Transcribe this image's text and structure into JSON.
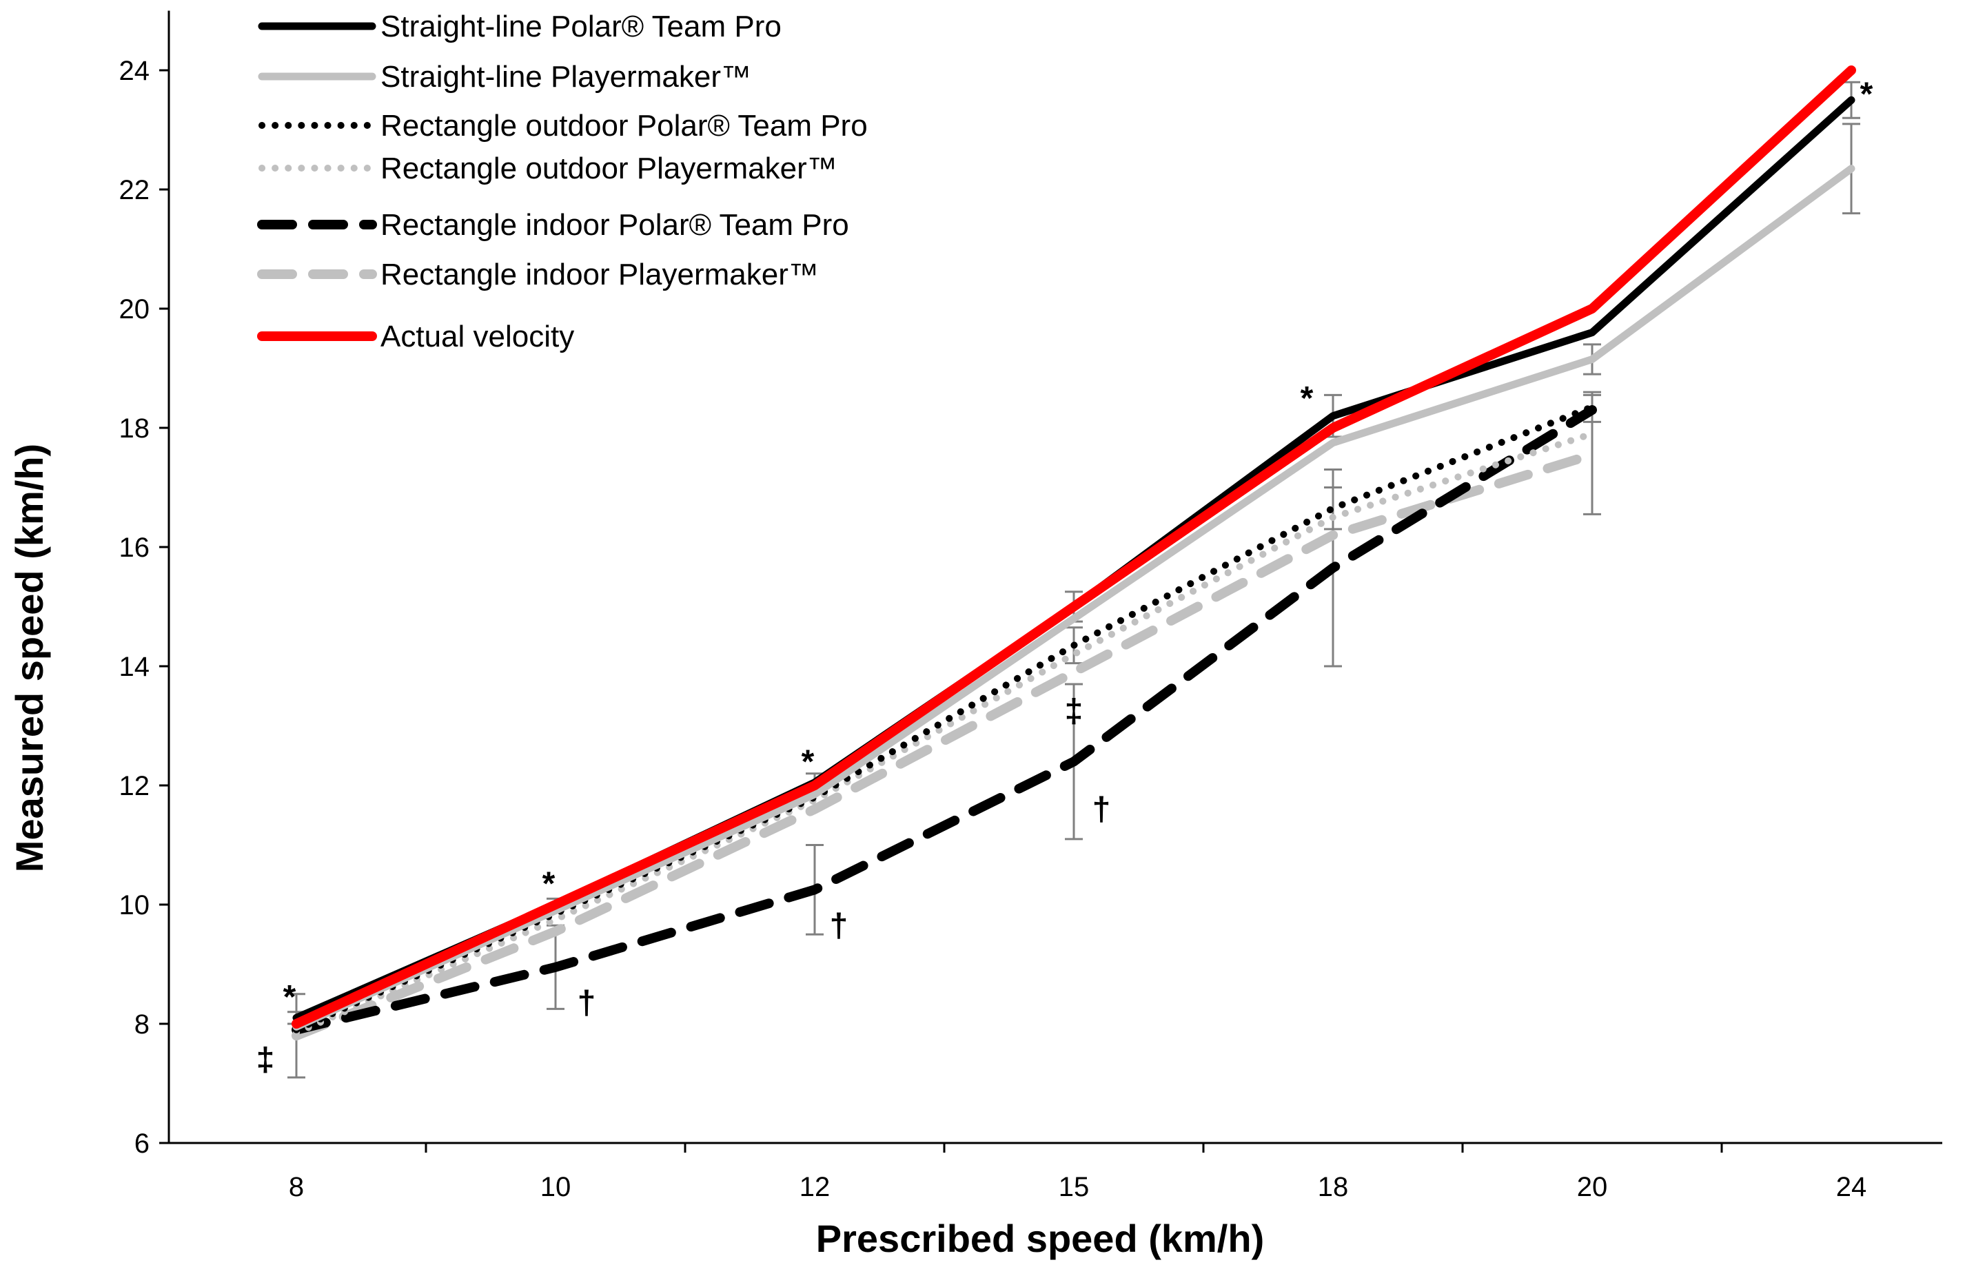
{
  "chart_data": {
    "type": "line",
    "title": "",
    "xlabel": "Prescribed speed (km/h)",
    "ylabel": "Measured speed (km/h)",
    "categories": [
      "8",
      "10",
      "12",
      "15",
      "18",
      "20",
      "24"
    ],
    "ylim": [
      6,
      25
    ],
    "yticks": [
      6,
      8,
      10,
      12,
      14,
      16,
      18,
      20,
      22,
      24
    ],
    "ytick_labels": [
      "6",
      "8",
      "10",
      "12",
      "14",
      "16",
      "18",
      "20",
      "22",
      "24"
    ],
    "grid": false,
    "legend_position": "top-left",
    "series": [
      {
        "name": "Straight-line Polar® Team Pro",
        "color": "#000000",
        "style": "solid",
        "values": [
          8.1,
          10.0,
          12.05,
          15.0,
          18.2,
          19.6,
          23.5
        ],
        "errors": [
          0.1,
          0.1,
          0.15,
          0.25,
          0.35,
          null,
          0.3
        ]
      },
      {
        "name": "Straight-line Playermaker™",
        "color": "#c0c0c0",
        "style": "solid",
        "values": [
          7.95,
          9.9,
          11.85,
          14.8,
          17.75,
          19.15,
          22.35
        ],
        "errors": [
          null,
          null,
          null,
          null,
          null,
          0.25,
          0.75
        ]
      },
      {
        "name": "Rectangle outdoor Polar® Team Pro",
        "color": "#000000",
        "style": "dotted",
        "values": [
          7.9,
          9.85,
          11.8,
          14.35,
          16.65,
          18.35,
          null
        ],
        "errors": [
          null,
          null,
          null,
          0.3,
          0.35,
          0.25,
          null
        ]
      },
      {
        "name": "Rectangle outdoor Playermaker™",
        "color": "#c0c0c0",
        "style": "dotted",
        "values": [
          7.85,
          9.75,
          11.75,
          14.2,
          16.5,
          17.9,
          null
        ],
        "errors": [
          null,
          null,
          null,
          null,
          null,
          null,
          null
        ]
      },
      {
        "name": "Rectangle indoor Polar® Team Pro",
        "color": "#000000",
        "style": "dashed",
        "values": [
          7.9,
          8.95,
          10.25,
          12.4,
          15.65,
          18.3,
          null
        ],
        "errors": [
          null,
          0.7,
          0.75,
          1.3,
          1.65,
          null,
          null
        ]
      },
      {
        "name": "Rectangle indoor Playermaker™",
        "color": "#c0c0c0",
        "style": "dashed",
        "values": [
          7.8,
          9.55,
          11.6,
          13.9,
          16.2,
          17.55,
          null
        ],
        "errors": [
          0.7,
          null,
          null,
          null,
          null,
          1.0,
          null
        ]
      },
      {
        "name": "Actual velocity",
        "color": "#ff0000",
        "style": "solid",
        "values": [
          8,
          10,
          12,
          15,
          18,
          20,
          24
        ],
        "errors": [
          null,
          null,
          null,
          null,
          null,
          null,
          null
        ]
      }
    ],
    "annotations": [
      {
        "text": "*",
        "x_index": 0,
        "y": 8.45,
        "dx": -10
      },
      {
        "text": "‡",
        "x_index": 0,
        "y": 7.4,
        "dx": -45
      },
      {
        "text": "*",
        "x_index": 1,
        "y": 10.35,
        "dx": -10
      },
      {
        "text": "†",
        "x_index": 1,
        "y": 8.35,
        "dx": 45
      },
      {
        "text": "*",
        "x_index": 2,
        "y": 12.4,
        "dx": -10
      },
      {
        "text": "†",
        "x_index": 2,
        "y": 9.65,
        "dx": 35
      },
      {
        "text": "‡",
        "x_index": 3,
        "y": 13.25,
        "dx": 0
      },
      {
        "text": "†",
        "x_index": 3,
        "y": 11.6,
        "dx": 40
      },
      {
        "text": "*",
        "x_index": 4,
        "y": 18.5,
        "dx": -38
      },
      {
        "text": "*",
        "x_index": 6,
        "y": 23.6,
        "dx": 22
      }
    ]
  }
}
